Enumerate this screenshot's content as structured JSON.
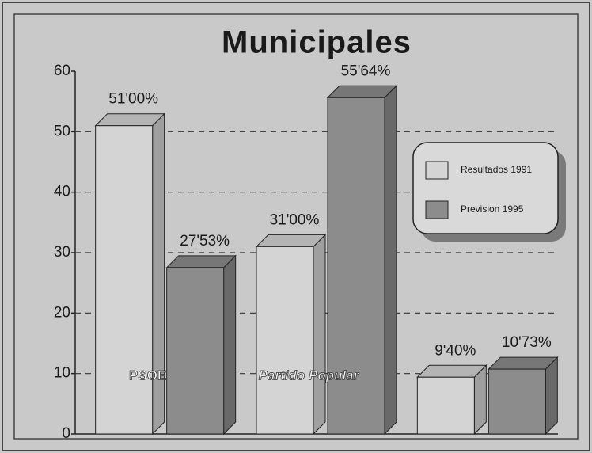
{
  "chart_data": {
    "type": "bar3d",
    "title": "Municipales",
    "categories": [
      "PSOE",
      "Partido Popular",
      null
    ],
    "series": [
      {
        "name": "Resultados 1991",
        "color": "#d4d4d4",
        "values": [
          51,
          31,
          9.4
        ],
        "value_labels": [
          "51'00%",
          "31'00%",
          "9'40%"
        ]
      },
      {
        "name": "Prevision 1995",
        "color": "#8c8c8c",
        "values": [
          27.53,
          55.64,
          10.73
        ],
        "value_labels": [
          "27'53%",
          "55'64%",
          "10'73%"
        ]
      }
    ],
    "ylim": [
      0,
      60
    ],
    "yticks": [
      0,
      10,
      20,
      30,
      40,
      50,
      60
    ],
    "grid": true,
    "legend": "right"
  }
}
